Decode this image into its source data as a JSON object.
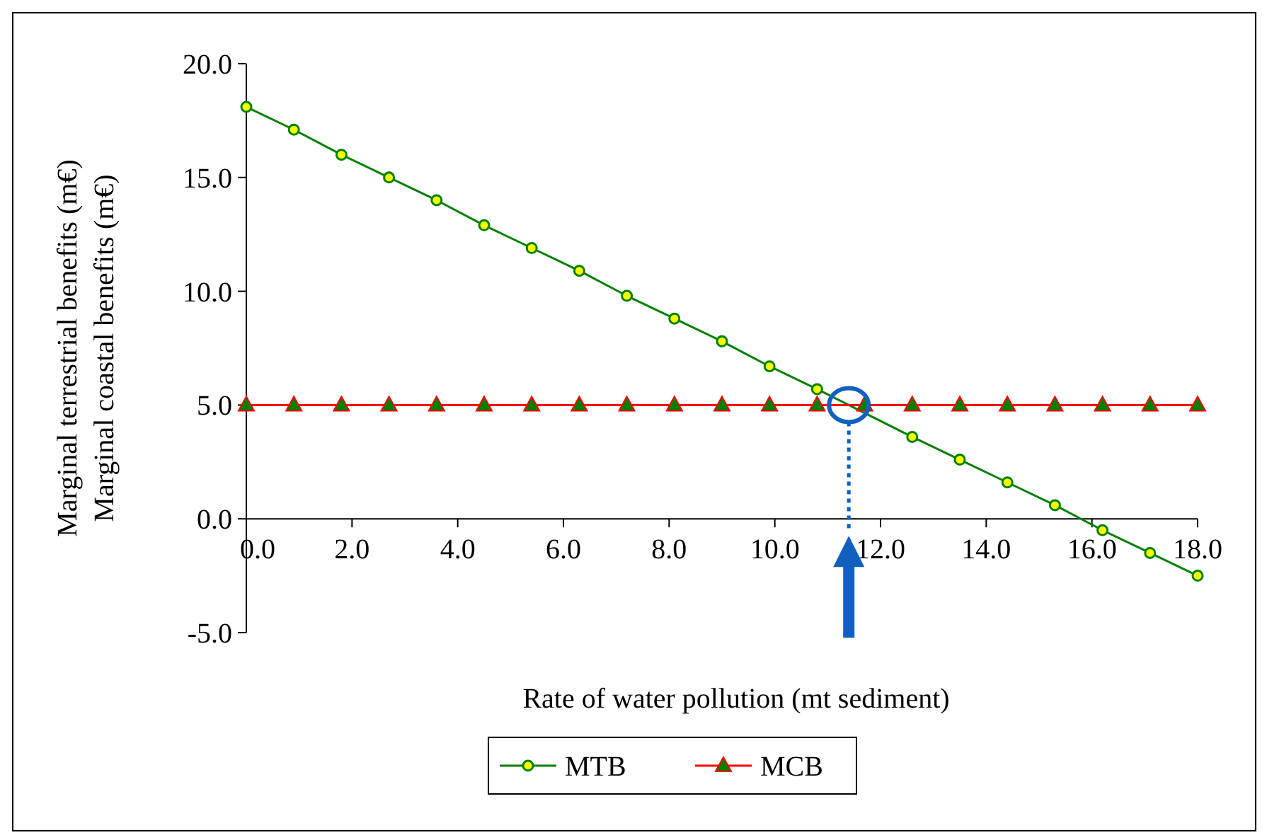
{
  "chart_data": {
    "type": "line",
    "xlabel": "Rate of water pollution (mt sediment)",
    "ylabel": "Marginal terrestrial benefits (m€)\nMarginal coastal benefits (m€)",
    "x": [
      0,
      0.9,
      1.8,
      2.7,
      3.6,
      4.5,
      5.4,
      6.3,
      7.2,
      8.1,
      9,
      9.9,
      10.8,
      11.7,
      12.6,
      13.5,
      14.4,
      15.3,
      16.2,
      17.1,
      18
    ],
    "series": [
      {
        "name": "MTB",
        "color": "#008000",
        "marker": "circle",
        "values": [
          18.1,
          17.1,
          16.0,
          15.0,
          14.0,
          12.9,
          11.9,
          10.9,
          9.8,
          8.8,
          7.8,
          6.7,
          5.7,
          null,
          3.6,
          2.6,
          1.6,
          0.6,
          -0.5,
          -1.5,
          -2.5
        ]
      },
      {
        "name": "MCB",
        "color": "#ff0000",
        "marker": "triangle",
        "values": [
          5,
          5,
          5,
          5,
          5,
          5,
          5,
          5,
          5,
          5,
          5,
          5,
          5,
          5,
          5,
          5,
          5,
          5,
          5,
          5,
          5
        ]
      }
    ],
    "xlim": [
      0,
      18
    ],
    "ylim": [
      -5,
      20
    ],
    "xticks": [
      {
        "value": 0,
        "label": "0.0"
      },
      {
        "value": 2,
        "label": "2.0"
      },
      {
        "value": 4,
        "label": "4.0"
      },
      {
        "value": 6,
        "label": "6.0"
      },
      {
        "value": 8,
        "label": "8.0"
      },
      {
        "value": 10,
        "label": "10.0"
      },
      {
        "value": 12,
        "label": "12.0"
      },
      {
        "value": 14,
        "label": "14.0"
      },
      {
        "value": 16,
        "label": "16.0"
      },
      {
        "value": 18,
        "label": "18.0"
      }
    ],
    "yticks": [
      {
        "value": -5,
        "label": "-5.0"
      },
      {
        "value": 0,
        "label": "0.0"
      },
      {
        "value": 5,
        "label": "5.0"
      },
      {
        "value": 10,
        "label": "10.0"
      },
      {
        "value": 15,
        "label": "15.0"
      },
      {
        "value": 20,
        "label": "20.0"
      }
    ],
    "grid": false,
    "legend": "bottom"
  }
}
